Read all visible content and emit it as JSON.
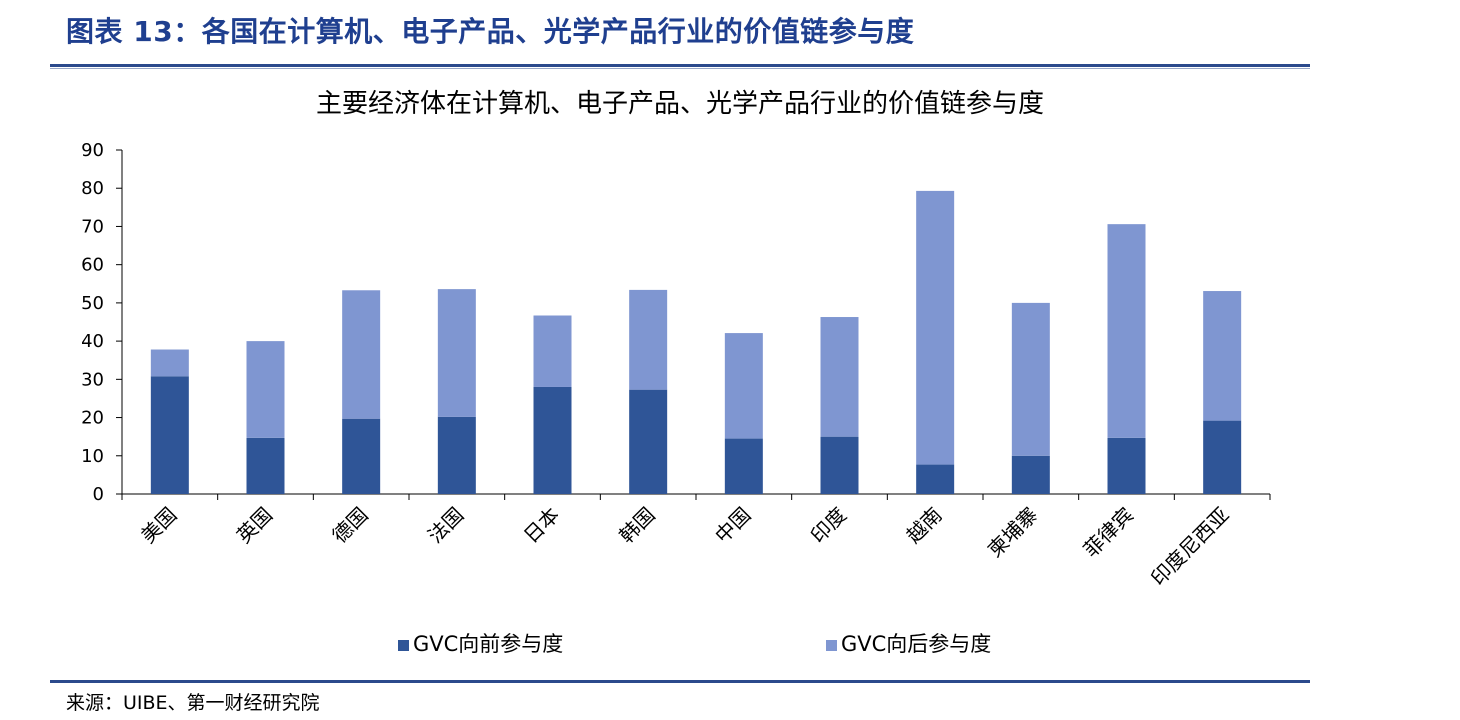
{
  "figure": {
    "title": "图表 13：各国在计算机、电子产品、光学产品行业的价值链参与度",
    "source": "来源：UIBE、第一财经研究院"
  },
  "chart_data": {
    "type": "bar",
    "stacked": true,
    "title": "主要经济体在计算机、电子产品、光学产品行业的价值链参与度",
    "categories": [
      "美国",
      "英国",
      "德国",
      "法国",
      "日本",
      "韩国",
      "中国",
      "印度",
      "越南",
      "柬埔寨",
      "菲律宾",
      "印度尼西亚"
    ],
    "series": [
      {
        "name": "GVC向前参与度",
        "color": "#2f5597",
        "values": [
          30.8,
          14.7,
          19.7,
          20.2,
          28.0,
          27.3,
          14.5,
          15.0,
          7.7,
          10.0,
          14.7,
          19.2
        ]
      },
      {
        "name": "GVC向后参与度",
        "color": "#7f96d1",
        "values": [
          7.0,
          25.3,
          33.6,
          33.4,
          18.7,
          26.1,
          27.6,
          31.3,
          71.6,
          40.0,
          55.9,
          33.9
        ]
      }
    ],
    "yticks": [
      0,
      10,
      20,
      30,
      40,
      50,
      60,
      70,
      80,
      90
    ],
    "ylim": [
      0,
      90
    ],
    "xlabel": "",
    "ylabel": "",
    "grid": false,
    "legend_position": "bottom"
  }
}
